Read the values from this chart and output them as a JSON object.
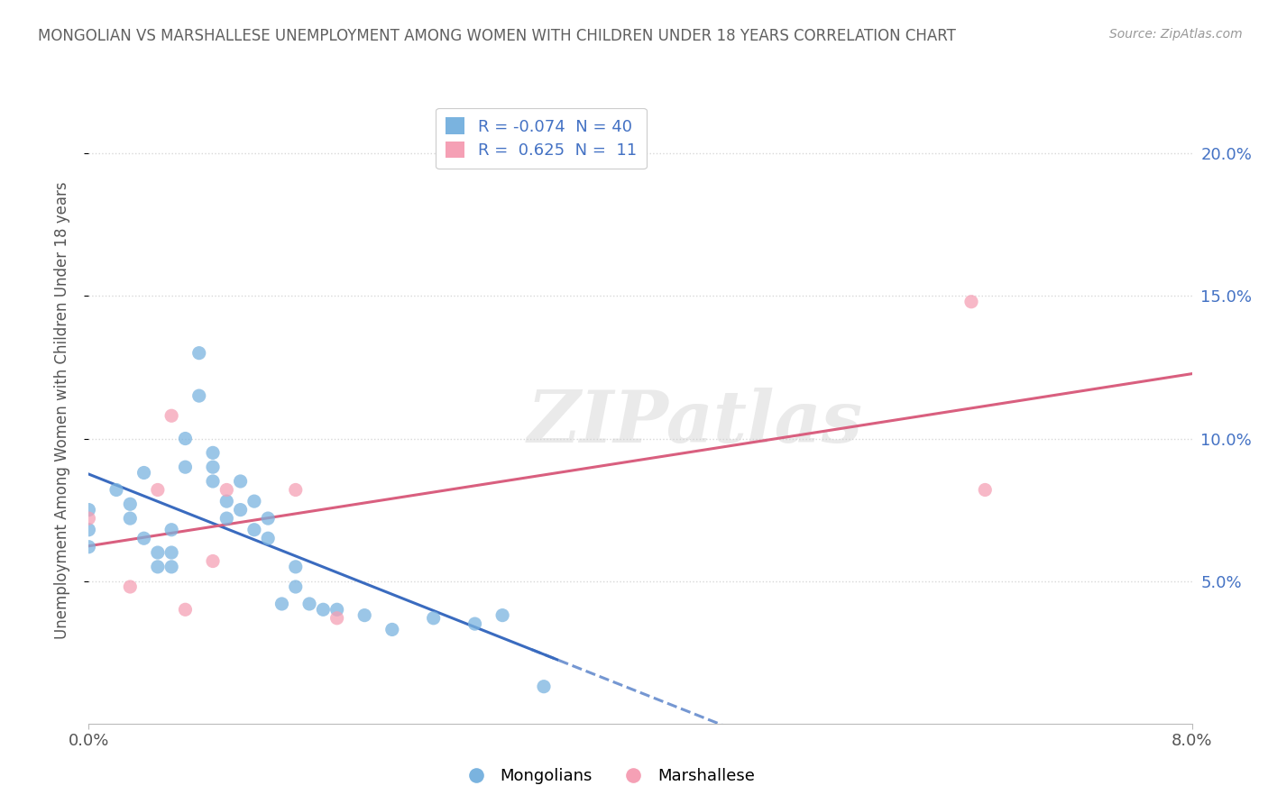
{
  "title": "MONGOLIAN VS MARSHALLESE UNEMPLOYMENT AMONG WOMEN WITH CHILDREN UNDER 18 YEARS CORRELATION CHART",
  "source": "Source: ZipAtlas.com",
  "ylabel": "Unemployment Among Women with Children Under 18 years",
  "xlim": [
    0.0,
    0.08
  ],
  "ylim": [
    0.0,
    0.22
  ],
  "mongolian_R": -0.074,
  "mongolian_N": 40,
  "marshallese_R": 0.625,
  "marshallese_N": 11,
  "mongolian_color": "#7ab3df",
  "marshallese_color": "#f5a0b5",
  "mongolian_line_color": "#3a6bbf",
  "marshallese_line_color": "#d95f7f",
  "mongolian_x": [
    0.0,
    0.0,
    0.0,
    0.002,
    0.003,
    0.003,
    0.004,
    0.004,
    0.005,
    0.005,
    0.006,
    0.006,
    0.006,
    0.007,
    0.007,
    0.008,
    0.008,
    0.009,
    0.009,
    0.009,
    0.01,
    0.01,
    0.011,
    0.011,
    0.012,
    0.012,
    0.013,
    0.013,
    0.014,
    0.015,
    0.015,
    0.016,
    0.017,
    0.018,
    0.02,
    0.022,
    0.025,
    0.028,
    0.03,
    0.033
  ],
  "mongolian_y": [
    0.075,
    0.068,
    0.062,
    0.082,
    0.077,
    0.072,
    0.088,
    0.065,
    0.06,
    0.055,
    0.068,
    0.06,
    0.055,
    0.1,
    0.09,
    0.13,
    0.115,
    0.095,
    0.09,
    0.085,
    0.078,
    0.072,
    0.085,
    0.075,
    0.078,
    0.068,
    0.072,
    0.065,
    0.042,
    0.055,
    0.048,
    0.042,
    0.04,
    0.04,
    0.038,
    0.033,
    0.037,
    0.035,
    0.038,
    0.013
  ],
  "marshallese_x": [
    0.0,
    0.003,
    0.005,
    0.006,
    0.007,
    0.009,
    0.01,
    0.015,
    0.018,
    0.064,
    0.065
  ],
  "marshallese_y": [
    0.072,
    0.048,
    0.082,
    0.108,
    0.04,
    0.057,
    0.082,
    0.082,
    0.037,
    0.148,
    0.082
  ],
  "background_color": "#ffffff",
  "grid_color": "#d8d8d8",
  "title_color": "#606060",
  "right_ytick_color": "#4472c4"
}
